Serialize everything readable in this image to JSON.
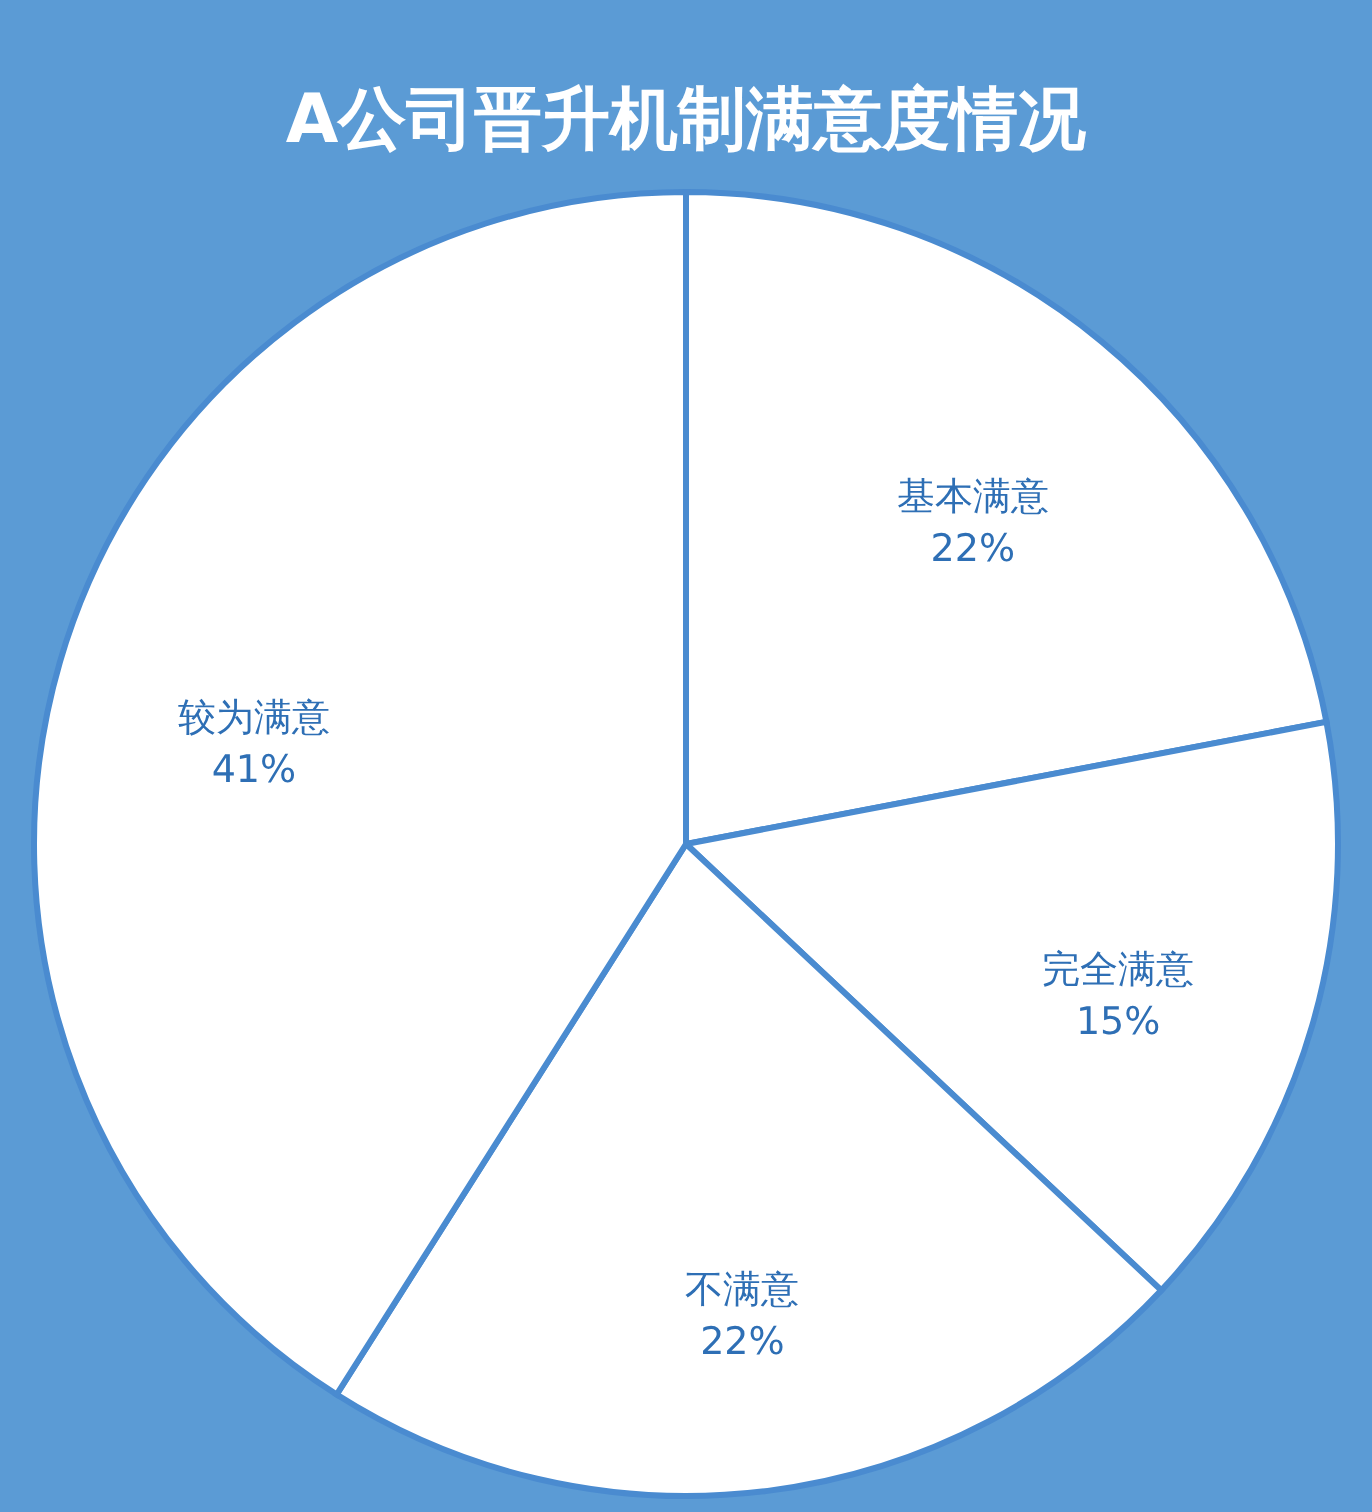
{
  "chart_data": {
    "type": "pie",
    "title": "A公司晋升机制满意度情况",
    "categories": [
      "基本满意",
      "完全满意",
      "不满意",
      "较为满意"
    ],
    "values": [
      22,
      15,
      22,
      41
    ],
    "value_labels": [
      "22%",
      "15%",
      "22%",
      "41%"
    ],
    "colors": [
      "#ffffff",
      "#ffffff",
      "#ffffff",
      "#ffffff"
    ],
    "legend": false
  }
}
